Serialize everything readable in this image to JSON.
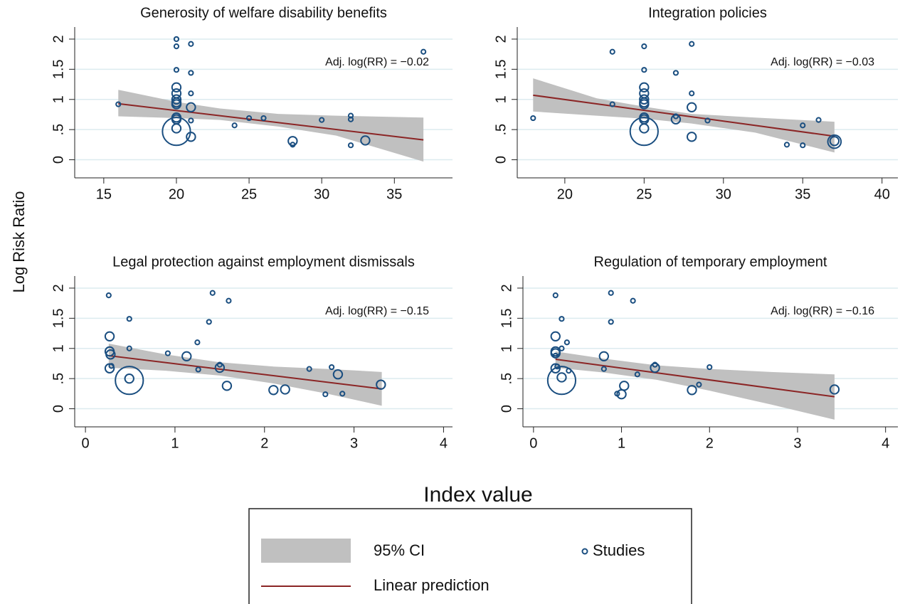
{
  "ylabel": "Log Risk Ratio",
  "xlabel": "Index value",
  "chart_data": [
    {
      "type": "scatter",
      "title": "Generosity of welfare disability benefits",
      "annotation": "Adj. log(RR) = −0.02",
      "xlim": [
        13,
        39
      ],
      "xticks": [
        15,
        20,
        25,
        30,
        35
      ],
      "ylim": [
        -0.3,
        2.2
      ],
      "yticks": [
        0,
        {
          "value": 0.5,
          "label": ".5"
        },
        1,
        1.5,
        2
      ],
      "grid": true,
      "series": [
        {
          "name": "Studies",
          "color": "#1a4e80",
          "x": [
            16,
            20,
            20,
            21,
            20,
            21,
            20,
            20,
            21,
            20,
            20,
            20,
            21,
            20,
            20,
            21,
            20,
            20,
            21,
            24,
            25,
            26,
            28,
            28,
            30,
            32,
            32,
            32,
            33,
            37
          ],
          "y": [
            0.92,
            2.0,
            1.88,
            1.92,
            1.49,
            1.44,
            1.2,
            1.1,
            1.1,
            1.0,
            0.95,
            0.92,
            0.87,
            0.7,
            0.67,
            0.65,
            0.47,
            0.52,
            0.38,
            0.57,
            0.69,
            0.69,
            0.31,
            0.25,
            0.66,
            0.73,
            0.67,
            0.24,
            0.32,
            1.79
          ],
          "size": [
            1,
            1,
            1,
            1,
            1,
            1,
            4,
            4,
            1,
            4,
            4,
            4,
            4,
            4,
            4,
            1,
            40,
            4,
            4,
            1,
            1,
            1,
            4,
            1,
            1,
            1,
            1,
            1,
            4,
            1
          ]
        },
        {
          "name": "Linear prediction",
          "color": "#8b2525",
          "x": [
            16,
            37
          ],
          "y": [
            0.93,
            0.33
          ]
        },
        {
          "name": "95% CI",
          "color": "#c0c0c0",
          "x": [
            16,
            20,
            23,
            27,
            31,
            37
          ],
          "lower": [
            0.72,
            0.69,
            0.66,
            0.55,
            0.4,
            -0.03
          ],
          "upper": [
            1.16,
            0.96,
            0.85,
            0.76,
            0.73,
            0.7
          ]
        }
      ]
    },
    {
      "type": "scatter",
      "title": "Integration policies",
      "annotation": "Adj. log(RR) = −0.03",
      "xlim": [
        17,
        41
      ],
      "xticks": [
        20,
        25,
        30,
        35,
        40
      ],
      "ylim": [
        -0.3,
        2.2
      ],
      "yticks": [
        0,
        {
          "value": 0.5,
          "label": ".5"
        },
        1,
        1.5,
        2
      ],
      "grid": true,
      "series": [
        {
          "color": "#1a4e80",
          "x": [
            18,
            23,
            23,
            25,
            25,
            25,
            25,
            25,
            25,
            25,
            25,
            25,
            25,
            25,
            27,
            27,
            27,
            28,
            28,
            28,
            28,
            29,
            34,
            35,
            35,
            36,
            37,
            37
          ],
          "y": [
            0.69,
            1.79,
            0.92,
            1.88,
            1.49,
            1.2,
            1.1,
            1.0,
            0.95,
            0.92,
            0.7,
            0.67,
            0.47,
            0.52,
            1.44,
            0.72,
            0.67,
            1.92,
            1.1,
            0.87,
            0.38,
            0.65,
            0.25,
            0.57,
            0.24,
            0.66,
            0.31,
            0.3
          ],
          "size": [
            1,
            1,
            1,
            1,
            1,
            4,
            4,
            4,
            4,
            4,
            4,
            4,
            40,
            4,
            1,
            1,
            4,
            1,
            1,
            4,
            4,
            1,
            1,
            1,
            1,
            1,
            4,
            9
          ]
        },
        {
          "color": "#8b2525",
          "x": [
            18,
            37
          ],
          "y": [
            1.07,
            0.39
          ]
        },
        {
          "color": "#c0c0c0",
          "x": [
            18,
            22,
            25,
            28,
            32,
            37
          ],
          "lower": [
            0.8,
            0.73,
            0.68,
            0.6,
            0.45,
            0.12
          ],
          "upper": [
            1.35,
            1.02,
            0.88,
            0.76,
            0.7,
            0.63
          ]
        }
      ]
    },
    {
      "type": "scatter",
      "title": "Legal protection against employment dismissals",
      "annotation": "Adj. log(RR) = −0.15",
      "xlim": [
        -0.12,
        4.1
      ],
      "xticks": [
        0,
        1,
        2,
        3,
        4
      ],
      "ylim": [
        -0.3,
        2.2
      ],
      "yticks": [
        0,
        {
          "value": 0.5,
          "label": ".5"
        },
        1,
        1.5,
        2
      ],
      "grid": true,
      "series": [
        {
          "color": "#1a4e80",
          "x": [
            0.26,
            0.49,
            0.27,
            0.27,
            0.28,
            0.27,
            0.29,
            0.49,
            0.49,
            0.49,
            0.92,
            1.13,
            1.25,
            1.26,
            1.38,
            1.42,
            1.5,
            1.5,
            1.58,
            1.6,
            2.1,
            2.23,
            2.5,
            2.68,
            2.75,
            2.82,
            2.87,
            3.3
          ],
          "y": [
            1.88,
            1.49,
            1.2,
            0.95,
            0.9,
            0.67,
            0.71,
            1.0,
            0.47,
            0.5,
            0.92,
            0.87,
            1.1,
            0.65,
            1.44,
            1.92,
            0.73,
            0.68,
            0.38,
            1.79,
            0.31,
            0.32,
            0.66,
            0.24,
            0.69,
            0.57,
            0.25,
            0.4
          ],
          "size": [
            1,
            1,
            4,
            4,
            4,
            4,
            1,
            1,
            40,
            4,
            1,
            4,
            1,
            1,
            1,
            1,
            1,
            4,
            4,
            1,
            4,
            4,
            1,
            1,
            1,
            4,
            1,
            4
          ]
        },
        {
          "color": "#8b2525",
          "x": [
            0.26,
            3.31
          ],
          "y": [
            0.88,
            0.33
          ]
        },
        {
          "color": "#c0c0c0",
          "x": [
            0.26,
            0.9,
            1.5,
            2.1,
            2.7,
            3.31
          ],
          "lower": [
            0.68,
            0.63,
            0.55,
            0.42,
            0.25,
            0.05
          ],
          "upper": [
            1.08,
            0.9,
            0.77,
            0.7,
            0.66,
            0.61
          ]
        }
      ]
    },
    {
      "type": "scatter",
      "title": "Regulation of temporary employment",
      "annotation": "Adj. log(RR) = −0.16",
      "xlim": [
        -0.12,
        4.14
      ],
      "xticks": [
        0,
        1,
        2,
        3,
        4
      ],
      "ylim": [
        -0.3,
        2.2
      ],
      "yticks": [
        0,
        {
          "value": 0.5,
          "label": ".5"
        },
        1,
        1.5,
        2
      ],
      "grid": true,
      "series": [
        {
          "color": "#1a4e80",
          "x": [
            0.25,
            0.25,
            0.25,
            0.25,
            0.25,
            0.25,
            0.27,
            0.32,
            0.32,
            0.38,
            0.32,
            0.32,
            0.4,
            0.8,
            0.8,
            0.88,
            0.88,
            0.95,
            1.0,
            1.03,
            1.13,
            1.18,
            1.38,
            1.38,
            1.8,
            1.88,
            2.0,
            3.42
          ],
          "y": [
            1.88,
            1.2,
            0.95,
            0.92,
            0.88,
            0.67,
            0.7,
            1.49,
            1.0,
            1.1,
            0.47,
            0.52,
            0.63,
            0.87,
            0.66,
            1.92,
            1.44,
            0.25,
            0.24,
            0.38,
            1.79,
            0.57,
            0.73,
            0.68,
            0.31,
            0.4,
            0.69,
            0.32
          ],
          "size": [
            1,
            4,
            4,
            4,
            1,
            4,
            1,
            1,
            1,
            1,
            40,
            4,
            1,
            4,
            1,
            1,
            1,
            1,
            4,
            4,
            1,
            1,
            1,
            4,
            4,
            1,
            1,
            4
          ]
        },
        {
          "color": "#8b2525",
          "x": [
            0.25,
            3.42
          ],
          "y": [
            0.82,
            0.2
          ]
        },
        {
          "color": "#c0c0c0",
          "x": [
            0.25,
            0.8,
            1.4,
            2.0,
            2.7,
            3.42
          ],
          "lower": [
            0.68,
            0.6,
            0.48,
            0.3,
            0.07,
            -0.18
          ],
          "upper": [
            0.95,
            0.83,
            0.72,
            0.66,
            0.61,
            0.57
          ]
        }
      ]
    }
  ]
}
